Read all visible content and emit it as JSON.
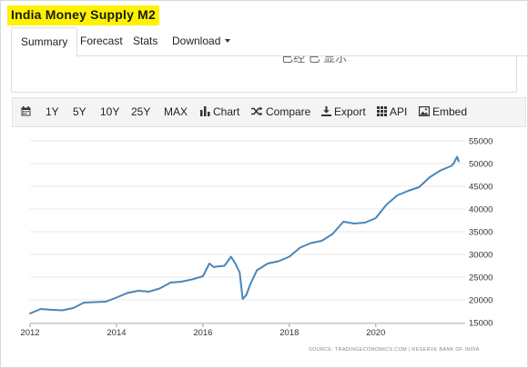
{
  "page": {
    "title": "India Money Supply M2"
  },
  "tabs": [
    {
      "label": "Summary",
      "active": true
    },
    {
      "label": "Forecast"
    },
    {
      "label": "Stats"
    },
    {
      "label": "Download"
    }
  ],
  "content": {
    "cut_text": "已经 已 显示"
  },
  "toolbar": {
    "calendar_icon": "calendar-icon",
    "ranges": [
      "1Y",
      "5Y",
      "10Y",
      "25Y",
      "MAX"
    ],
    "chart_label": "Chart",
    "compare_label": "Compare",
    "export_label": "Export",
    "api_label": "API",
    "embed_label": "Embed"
  },
  "colors": {
    "line": "#4a86b8",
    "highlight": "#fff200"
  },
  "chart_data": {
    "type": "line",
    "x_ticks": [
      "2012",
      "2014",
      "2016",
      "2018",
      "2020"
    ],
    "y_ticks": [
      "15000",
      "20000",
      "25000",
      "30000",
      "35000",
      "40000",
      "45000",
      "50000",
      "55000"
    ],
    "xlim": [
      2012,
      2021.9
    ],
    "ylim": [
      15000,
      55000
    ],
    "grid": "horizontal",
    "series": [
      {
        "x": [
          2012.0,
          2012.1,
          2012.25,
          2012.5,
          2012.75,
          2013.0,
          2013.25,
          2013.5,
          2013.75,
          2014.0,
          2014.25,
          2014.5,
          2014.75,
          2015.0,
          2015.25,
          2015.5,
          2015.75,
          2016.0,
          2016.15,
          2016.25,
          2016.3,
          2016.5,
          2016.65,
          2016.75,
          2016.85,
          2016.92,
          2017.0,
          2017.1,
          2017.25,
          2017.5,
          2017.75,
          2018.0,
          2018.25,
          2018.5,
          2018.75,
          2019.0,
          2019.25,
          2019.5,
          2019.75,
          2020.0,
          2020.25,
          2020.5,
          2020.75,
          2021.0,
          2021.25,
          2021.5,
          2021.75,
          2021.8,
          2021.88,
          2021.92
        ],
        "y": [
          17000,
          17400,
          18000,
          17800,
          17700,
          18200,
          19400,
          19500,
          19600,
          20500,
          21500,
          22000,
          21800,
          22500,
          23800,
          24000,
          24500,
          25200,
          28000,
          27200,
          27300,
          27500,
          29500,
          28000,
          26000,
          20200,
          21000,
          23500,
          26500,
          28000,
          28500,
          29500,
          31500,
          32500,
          33000,
          34500,
          37200,
          36800,
          37000,
          38000,
          41000,
          43000,
          44000,
          44800,
          47000,
          48500,
          49500,
          50000,
          51500,
          50500
        ]
      }
    ]
  },
  "source": "SOURCE: TRADINGECONOMICS.COM | RESERVE BANK OF INDIA"
}
